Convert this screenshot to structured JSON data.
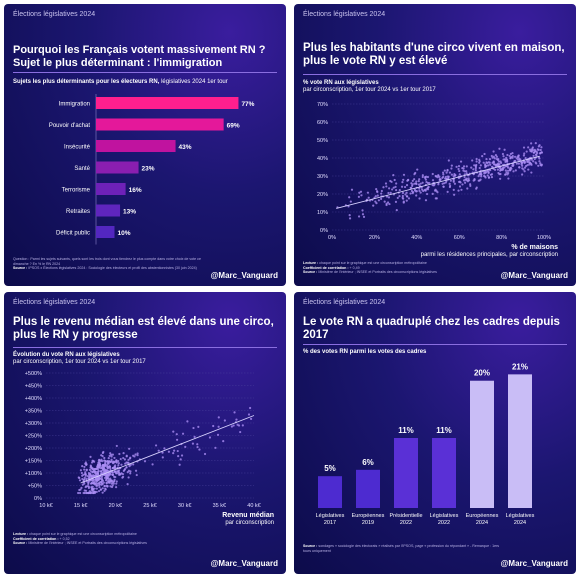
{
  "brand": "@Marc_Vanguard",
  "panels": {
    "p1": {
      "tag": "Élections législatives 2024",
      "title": "Pourquoi les Français votent massivement RN ?",
      "title2": "Sujet le plus déterminant : l'immigration",
      "subtitle": "Sujets les plus déterminants pour les électeurs RN,",
      "subtitle_note": "législatives 2024 1er tour",
      "footnote": "Question : Parmi les sujets suivants, quels sont les trois dont vous tiendrez le plus compte dans votre choix de vote ce dimanche ? En % le RN 2024",
      "source_label": "Source :",
      "source": "IPSOS x Élections législatives 2024 : Sociologie des électeurs et profil des abstentionnistes (30 juin 2024)"
    },
    "p2": {
      "tag": "Élections législatives 2024",
      "title": "Plus les habitants d'une circo vivent en maison, plus le vote RN y est élevé",
      "subtitle": "% vote RN aux législatives",
      "subtitle2": "par circonscription, 1er tour 2024 vs 1er tour 2017",
      "xlabel": "% de maisons",
      "xlabel2": "parmi les résidences principales, par circonscription",
      "footnote_label": "Lecture :",
      "footnote": "chaque point sur le graphique est une circonscription métropolitaine",
      "corr_label": "Coefficient de corrélation :",
      "corr": "+ 0,49",
      "source_label": "Source :",
      "source": "Ministère de l'Intérieur ; INSEE et Portraits des circonscriptions législatives"
    },
    "p3": {
      "tag": "Élections législatives 2024",
      "title": "Plus le revenu médian est élevé dans une circo, plus le RN y progresse",
      "subtitle": "Évolution du vote RN aux législatives",
      "subtitle2": "par circonscription, 1er tour 2024 vs 1er tour 2017",
      "xlabel": "Revenu médian",
      "xlabel2": "par circonscription",
      "footnote_label": "Lecture :",
      "footnote": "chaque point sur le graphique est une circonscription métropolitaine",
      "corr_label": "Coefficient de corrélation :",
      "corr": "+ 0,52",
      "source_label": "Source :",
      "source": "Ministère de l'Intérieur ; INSEE et Portraits des circonscriptions législatives"
    },
    "p4": {
      "tag": "Élections législatives 2024",
      "title": "Le vote RN a quadruplé chez les cadres depuis 2017",
      "subtitle": "% des votes RN parmi les votes des cadres",
      "source_label": "Source :",
      "source": "sondages « sociologie des électorats » réalisés par l'IPSOS, page « profession du répondant » - Remarque : 1ers tours uniquement"
    }
  },
  "chart_data": [
    {
      "type": "bar",
      "orientation": "horizontal",
      "categories": [
        "Immigration",
        "Pouvoir d'achat",
        "Insécurité",
        "Santé",
        "Terrorisme",
        "Retraites",
        "Déficit public"
      ],
      "values": [
        77,
        69,
        43,
        23,
        16,
        13,
        10
      ],
      "value_suffix": "%",
      "xlim": [
        0,
        80
      ],
      "colors": [
        "#ff1f8e",
        "#e4189a",
        "#c0139f",
        "#8a1eb0",
        "#6e21b8",
        "#5f25bd",
        "#5327c0"
      ]
    },
    {
      "type": "scatter",
      "xlabel": "% de maisons",
      "ylabel": "% vote RN aux législatives",
      "x_ticks": [
        "0%",
        "20%",
        "40%",
        "60%",
        "80%",
        "100%"
      ],
      "y_ticks": [
        "0%",
        "10%",
        "20%",
        "30%",
        "40%",
        "50%",
        "60%",
        "70%"
      ],
      "xlim": [
        0,
        100
      ],
      "ylim": [
        0,
        70
      ],
      "correlation": 0.49,
      "trend": {
        "x": [
          2,
          98
        ],
        "y": [
          12,
          41
        ]
      },
      "point_count": 543,
      "color": "#a98cf2"
    },
    {
      "type": "scatter",
      "xlabel": "Revenu médian",
      "ylabel": "Évolution du vote RN aux législatives",
      "x_ticks": [
        "10 k€",
        "15 k€",
        "20 k€",
        "25 k€",
        "30 k€",
        "35 k€",
        "40 k€"
      ],
      "y_ticks": [
        "0%",
        "+50%",
        "+100%",
        "+150%",
        "+200%",
        "+250%",
        "+300%",
        "+350%",
        "+400%",
        "+450%",
        "+500%"
      ],
      "xlim": [
        10,
        40
      ],
      "ylim": [
        0,
        500
      ],
      "correlation": 0.52,
      "trend": {
        "x": [
          15,
          40
        ],
        "y": [
          60,
          330
        ]
      },
      "point_count": 543,
      "color": "#a98cf2"
    },
    {
      "type": "bar",
      "categories": [
        "Législatives\n2017",
        "Européennes\n2019",
        "Présidentielle\n2022",
        "Législatives\n2022",
        "Européennes\n2024",
        "Législatives\n2024"
      ],
      "values": [
        5,
        6,
        11,
        11,
        20,
        21
      ],
      "value_suffix": "%",
      "ylim": [
        0,
        22
      ],
      "colors": [
        "#4d2bd0",
        "#4d2bd0",
        "#5a30d6",
        "#5a30d6",
        "#c9bdf6",
        "#c9bdf6"
      ]
    }
  ]
}
